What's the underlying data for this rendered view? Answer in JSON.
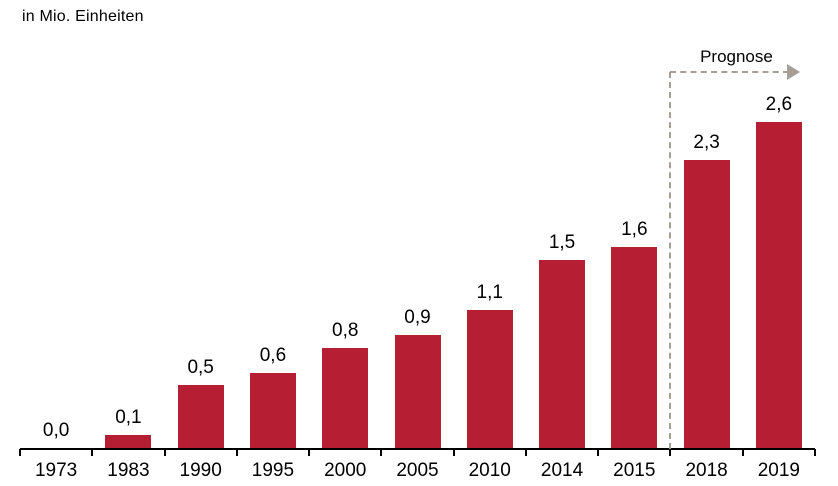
{
  "chart_data": {
    "type": "bar",
    "title": "in Mio. Einheiten",
    "categories": [
      "1973",
      "1983",
      "1990",
      "1995",
      "2000",
      "2005",
      "2010",
      "2014",
      "2015",
      "2018",
      "2019"
    ],
    "values": [
      0.0,
      0.1,
      0.5,
      0.6,
      0.8,
      0.9,
      1.1,
      1.5,
      1.6,
      2.3,
      2.6
    ],
    "value_labels": [
      "0,0",
      "0,1",
      "0,5",
      "0,6",
      "0,8",
      "0,9",
      "1,1",
      "1,5",
      "1,6",
      "2,3",
      "2,6"
    ],
    "xlabel": "",
    "ylabel": "",
    "ylim": [
      0,
      2.8
    ],
    "grid": false,
    "legend": false,
    "annotation": {
      "label": "Prognose",
      "applies_to": [
        "2018",
        "2019"
      ],
      "style": "dashed-bracket-arrow-right"
    },
    "bar_color": "#b61e33",
    "annotation_color": "#a79f96",
    "axis_color": "#000000",
    "text_color": "#000000"
  }
}
